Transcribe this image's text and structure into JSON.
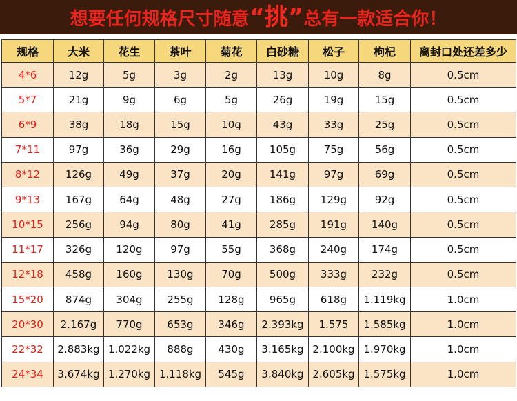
{
  "title": {
    "prefix": "想要任何规格尺寸随意",
    "highlight": "“挑”",
    "suffix": "总有一款适合你！"
  },
  "table": {
    "header": [
      "规格",
      "大米",
      "花生",
      "茶叶",
      "菊花",
      "白砂糖",
      "松子",
      "枸杞",
      "离封口处还差多少"
    ],
    "rows": [
      [
        "4*6",
        "12g",
        "5g",
        "3g",
        "2g",
        "13g",
        "10g",
        "8g",
        "0.5cm"
      ],
      [
        "5*7",
        "21g",
        "9g",
        "6g",
        "5g",
        "26g",
        "19g",
        "15g",
        "0.5cm"
      ],
      [
        "6*9",
        "38g",
        "18g",
        "15g",
        "10g",
        "43g",
        "33g",
        "25g",
        "0.5cm"
      ],
      [
        "7*11",
        "97g",
        "36g",
        "29g",
        "16g",
        "105g",
        "75g",
        "56g",
        "0.5cm"
      ],
      [
        "8*12",
        "126g",
        "49g",
        "37g",
        "20g",
        "141g",
        "97g",
        "69g",
        "0.5cm"
      ],
      [
        "9*13",
        "167g",
        "64g",
        "48g",
        "27g",
        "186g",
        "129g",
        "92g",
        "0.5cm"
      ],
      [
        "10*15",
        "256g",
        "94g",
        "80g",
        "41g",
        "285g",
        "191g",
        "140g",
        "0.5cm"
      ],
      [
        "11*17",
        "326g",
        "120g",
        "97g",
        "55g",
        "368g",
        "240g",
        "174g",
        "0.5cm"
      ],
      [
        "12*18",
        "458g",
        "160g",
        "130g",
        "70g",
        "500g",
        "333g",
        "232g",
        "0.5cm"
      ],
      [
        "15*20",
        "874g",
        "304g",
        "255g",
        "128g",
        "965g",
        "618g",
        "1.119kg",
        "1.0cm"
      ],
      [
        "20*30",
        "2.167g",
        "770g",
        "653g",
        "346g",
        "2.393kg",
        "1.575",
        "1.585kg",
        "1.0cm"
      ],
      [
        "22*32",
        "2.883kg",
        "1.022kg",
        "888g",
        "430g",
        "3.165kg",
        "2.100kg",
        "1.970kg",
        "1.0cm"
      ],
      [
        "24*34",
        "3.674kg",
        "1.270kg",
        "1.118kg",
        "545g",
        "3.840kg",
        "2.605kg",
        "1.575kg",
        "1.0cm"
      ]
    ]
  }
}
